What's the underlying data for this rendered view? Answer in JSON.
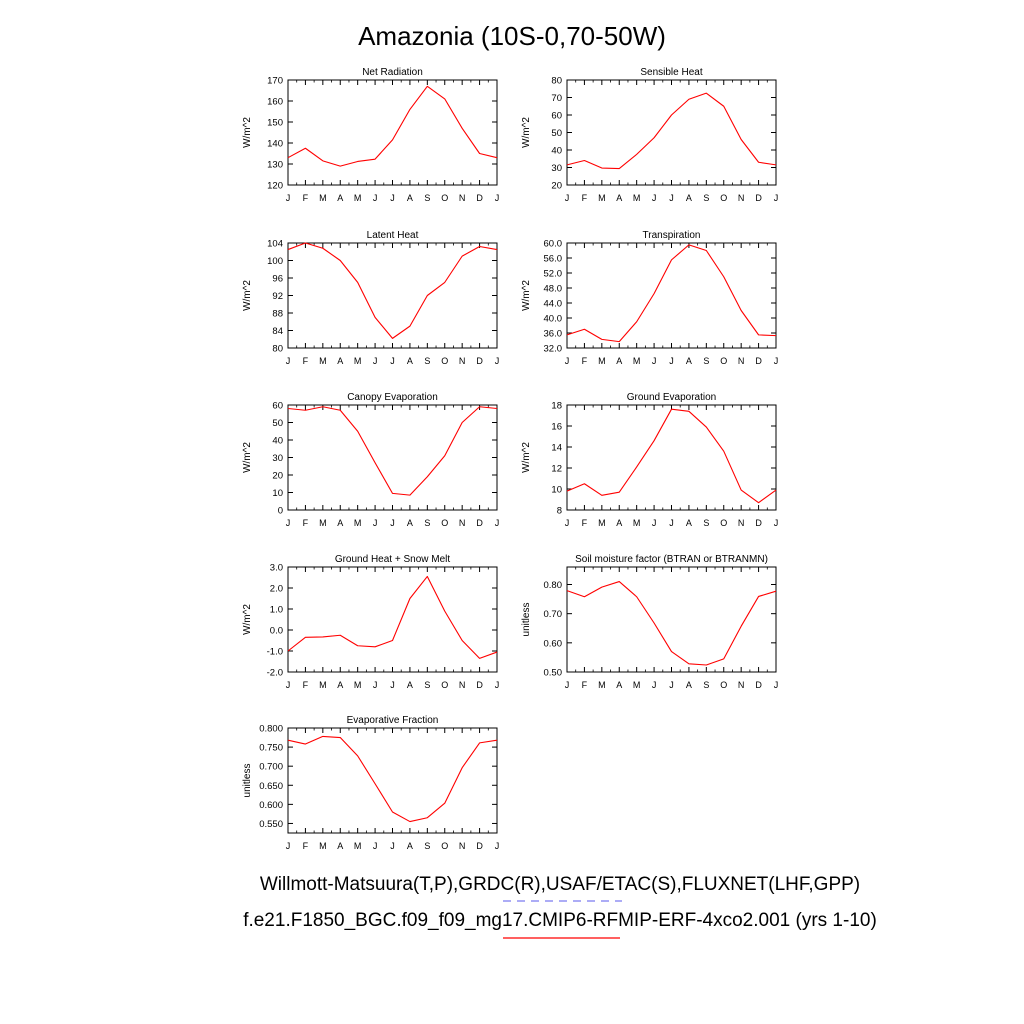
{
  "title": "Amazonia (10S-0,70-50W)",
  "footer": {
    "line1": "Willmott-Matsuura(T,P),GRDC(R),USAF/ETAC(S),FLUXNET(LHF,GPP)",
    "line2": "f.e21.F1850_BGC.f09_f09_mg17.CMIP6-RFMIP-ERF-4xco2.001 (yrs 1-10)",
    "obs_line_color": "#7a7af0",
    "model_line_color": "#ff0000"
  },
  "colors": {
    "model": "#ff0000",
    "axis": "#000000"
  },
  "chart_data": [
    {
      "type": "line",
      "title": "Net Radiation",
      "ylabel": "W/m^2",
      "categories": [
        "J",
        "F",
        "M",
        "A",
        "M",
        "J",
        "J",
        "A",
        "S",
        "O",
        "N",
        "D",
        "J"
      ],
      "values": [
        133,
        137.5,
        131.5,
        129,
        131.2,
        132.3,
        141.5,
        156,
        167,
        161,
        147,
        135,
        133
      ],
      "ylim": [
        120,
        170
      ],
      "yticks": [
        "120",
        "130",
        "140",
        "150",
        "160",
        "170"
      ]
    },
    {
      "type": "line",
      "title": "Sensible Heat",
      "ylabel": "W/m^2",
      "categories": [
        "J",
        "F",
        "M",
        "A",
        "M",
        "J",
        "J",
        "A",
        "S",
        "O",
        "N",
        "D",
        "J"
      ],
      "values": [
        31.5,
        34,
        29.7,
        29.4,
        37.5,
        47,
        60,
        69,
        72.5,
        65,
        46,
        33,
        31.5
      ],
      "ylim": [
        20,
        80
      ],
      "yticks": [
        "20",
        "30",
        "40",
        "50",
        "60",
        "70",
        "80"
      ]
    },
    {
      "type": "line",
      "title": "Latent Heat",
      "ylabel": "W/m^2",
      "categories": [
        "J",
        "F",
        "M",
        "A",
        "M",
        "J",
        "J",
        "A",
        "S",
        "O",
        "N",
        "D",
        "J"
      ],
      "values": [
        102.5,
        104,
        102.8,
        100,
        95,
        87,
        82.2,
        85,
        92,
        95,
        101,
        103.2,
        102.5
      ],
      "ylim": [
        80,
        104
      ],
      "yticks": [
        "80",
        "84",
        "88",
        "92",
        "96",
        "100",
        "104"
      ]
    },
    {
      "type": "line",
      "title": "Transpiration",
      "ylabel": "W/m^2",
      "categories": [
        "J",
        "F",
        "M",
        "A",
        "M",
        "J",
        "J",
        "A",
        "S",
        "O",
        "N",
        "D",
        "J"
      ],
      "values": [
        35.5,
        37,
        34.3,
        33.7,
        39,
        46.5,
        55.5,
        59.5,
        58,
        51,
        42,
        35.5,
        35.3
      ],
      "ylim": [
        32,
        60
      ],
      "yticks": [
        "32.0",
        "36.0",
        "40.0",
        "44.0",
        "48.0",
        "52.0",
        "56.0",
        "60.0"
      ]
    },
    {
      "type": "line",
      "title": "Canopy Evaporation",
      "ylabel": "W/m^2",
      "categories": [
        "J",
        "F",
        "M",
        "A",
        "M",
        "J",
        "J",
        "A",
        "S",
        "O",
        "N",
        "D",
        "J"
      ],
      "values": [
        58,
        57,
        59,
        57,
        45,
        27,
        9.5,
        8.5,
        19,
        31,
        50,
        59,
        58
      ],
      "ylim": [
        0,
        60
      ],
      "yticks": [
        "0",
        "10",
        "20",
        "30",
        "40",
        "50",
        "60"
      ]
    },
    {
      "type": "line",
      "title": "Ground Evaporation",
      "ylabel": "W/m^2",
      "categories": [
        "J",
        "F",
        "M",
        "A",
        "M",
        "J",
        "J",
        "A",
        "S",
        "O",
        "N",
        "D",
        "J"
      ],
      "values": [
        9.8,
        10.5,
        9.4,
        9.7,
        12.1,
        14.6,
        17.6,
        17.4,
        15.9,
        13.6,
        9.9,
        8.7,
        9.9
      ],
      "ylim": [
        8,
        18
      ],
      "yticks": [
        "8",
        "10",
        "12",
        "14",
        "16",
        "18"
      ]
    },
    {
      "type": "line",
      "title": "Ground Heat + Snow Melt",
      "ylabel": "W/m^2",
      "categories": [
        "J",
        "F",
        "M",
        "A",
        "M",
        "J",
        "J",
        "A",
        "S",
        "O",
        "N",
        "D",
        "J"
      ],
      "values": [
        -1.0,
        -0.35,
        -0.33,
        -0.25,
        -0.75,
        -0.8,
        -0.5,
        1.5,
        2.55,
        0.9,
        -0.5,
        -1.35,
        -1.05
      ],
      "ylim": [
        -2,
        3
      ],
      "yticks": [
        "-2.0",
        "-1.0",
        "0.0",
        "1.0",
        "2.0",
        "3.0"
      ]
    },
    {
      "type": "line",
      "title": "Soil moisture factor (BTRAN or BTRANMN)",
      "ylabel": "unitless",
      "categories": [
        "J",
        "F",
        "M",
        "A",
        "M",
        "J",
        "J",
        "A",
        "S",
        "O",
        "N",
        "D",
        "J"
      ],
      "values": [
        0.779,
        0.758,
        0.791,
        0.81,
        0.758,
        0.668,
        0.57,
        0.528,
        0.524,
        0.545,
        0.657,
        0.759,
        0.777
      ],
      "ylim": [
        0.5,
        0.86
      ],
      "yticks": [
        "0.50",
        "0.60",
        "0.70",
        "0.80"
      ],
      "yticks_at": [
        0.5,
        0.6,
        0.7,
        0.8
      ]
    },
    {
      "type": "line",
      "title": "Evaporative Fraction",
      "ylabel": "unitless",
      "categories": [
        "J",
        "F",
        "M",
        "A",
        "M",
        "J",
        "J",
        "A",
        "S",
        "O",
        "N",
        "D",
        "J"
      ],
      "values": [
        0.768,
        0.758,
        0.778,
        0.775,
        0.727,
        0.654,
        0.58,
        0.555,
        0.565,
        0.603,
        0.696,
        0.761,
        0.768
      ],
      "ylim": [
        0.525,
        0.8
      ],
      "yticks": [
        "0.550",
        "0.600",
        "0.650",
        "0.700",
        "0.750",
        "0.800"
      ],
      "yticks_at": [
        0.55,
        0.6,
        0.65,
        0.7,
        0.75,
        0.8
      ]
    }
  ]
}
